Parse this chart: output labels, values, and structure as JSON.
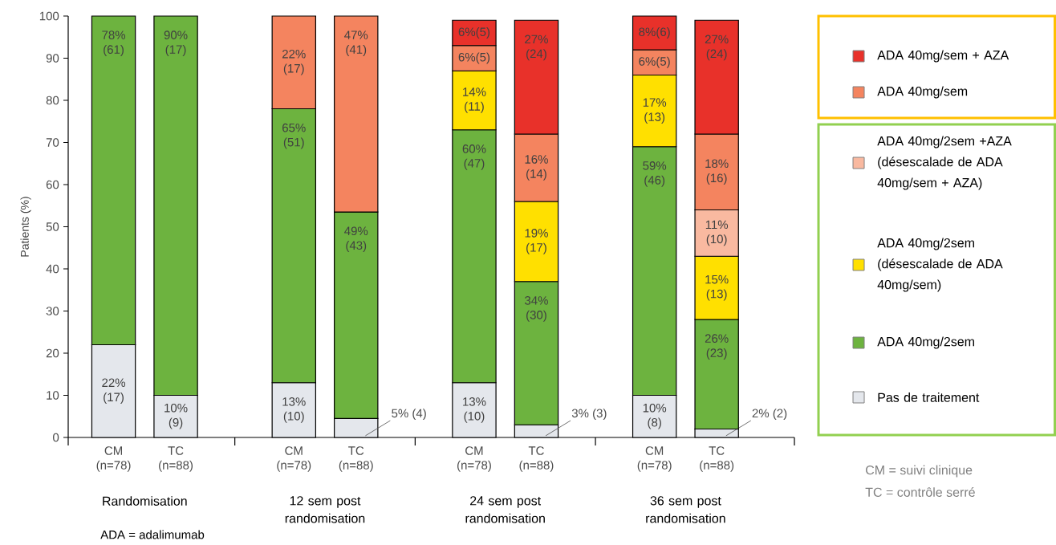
{
  "chart_data": {
    "type": "bar",
    "stacked": true,
    "legend": "right",
    "ylabel": "Patients (%)",
    "ylim": [
      0,
      100
    ],
    "yticks": [
      0,
      10,
      20,
      30,
      40,
      50,
      60,
      70,
      80,
      90,
      100
    ],
    "categories": [
      "CM (n=78)",
      "TC (n=88)",
      "CM (n=78)",
      "TC (n=88)",
      "CM (n=78)",
      "TC (n=88)",
      "CM (n=78)",
      "TC (n=88)"
    ],
    "series": [
      {
        "name": "Pas de traitement",
        "color": "#e4e7ec",
        "values": [
          22,
          10,
          13,
          4.5,
          13,
          3,
          10,
          2
        ],
        "value_labels": [
          "22% (17)",
          "10% (9)",
          "13% (10)",
          "5% (4)",
          "13% (10)",
          "3% (3)",
          "10% (8)",
          "2% (2)"
        ]
      },
      {
        "name": "ADA 40mg/2sem",
        "color": "#6db33f",
        "values": [
          78,
          90,
          65,
          49,
          60,
          34,
          59,
          26
        ],
        "value_labels": [
          "78% (61)",
          "90% (17)",
          "65% (51)",
          "49% (43)",
          "60% (47)",
          "34% (30)",
          "59% (46)",
          "26% (23)"
        ]
      },
      {
        "name": "ADA 40mg/2sem (désescalade de ADA 40mg/sem)",
        "color": "#ffe000",
        "values": [
          null,
          null,
          null,
          null,
          14,
          19,
          17,
          15
        ],
        "value_labels": [
          null,
          null,
          null,
          null,
          "14% (11)",
          "19% (17)",
          "17% (13)",
          "15% (13)"
        ]
      },
      {
        "name": "ADA 40mg/2sem +AZA (désescalade de ADA 40mg/sem + AZA)",
        "color": "#f9b9a0",
        "values": [
          null,
          null,
          null,
          null,
          null,
          null,
          null,
          11
        ],
        "value_labels": [
          null,
          null,
          null,
          null,
          null,
          null,
          null,
          "11% (10)"
        ]
      },
      {
        "name": "ADA 40mg/sem",
        "color": "#f4845f",
        "values": [
          null,
          null,
          22,
          46.5,
          6,
          16,
          6,
          18
        ],
        "value_labels": [
          null,
          null,
          "22% (17)",
          "47% (41)",
          "6%(5)",
          "16% (14)",
          "6%(5)",
          "18% (16)"
        ]
      },
      {
        "name": "ADA 40mg/sem + AZA",
        "color": "#e8312a",
        "values": [
          null,
          null,
          null,
          null,
          6,
          27,
          8,
          27
        ],
        "value_labels": [
          null,
          null,
          null,
          null,
          "6%(5)",
          "27% (24)",
          "8%(6)",
          "27% (24)"
        ]
      }
    ],
    "annotations": [
      "Randomisation",
      "12 sem post randomisation",
      "24 sem post randomisation",
      "36 sem post randomisation",
      "ADA = adalimumab",
      "CM = suivi clinique",
      "TC = contrôle serré"
    ]
  }
}
